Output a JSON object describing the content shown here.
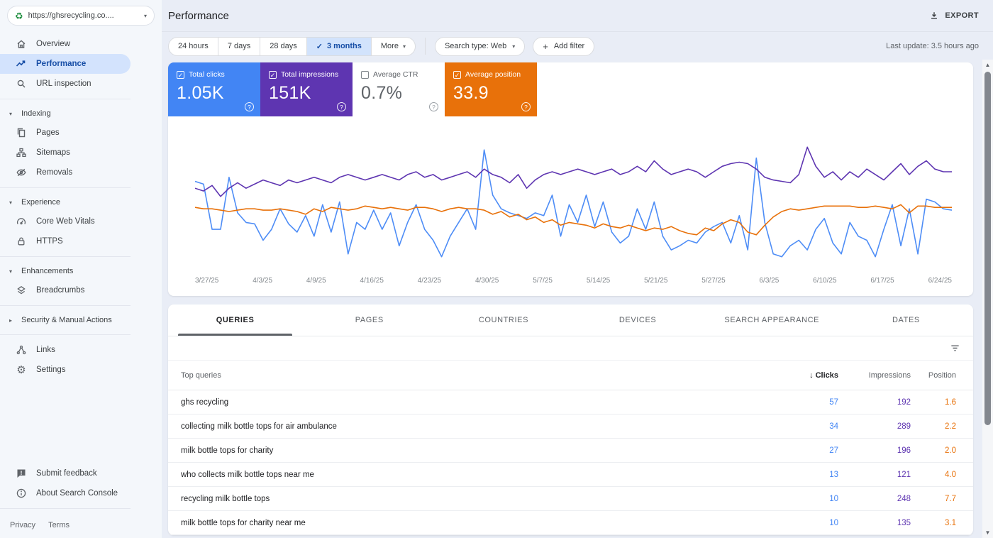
{
  "property_selector": {
    "url": "https://ghsrecycling.co....",
    "icon": "recycle-icon"
  },
  "sidebar": {
    "items": [
      {
        "label": "Overview"
      },
      {
        "label": "Performance",
        "active": true
      },
      {
        "label": "URL inspection"
      },
      {
        "label": "Indexing",
        "type": "section-expanded"
      },
      {
        "label": "Pages"
      },
      {
        "label": "Sitemaps"
      },
      {
        "label": "Removals"
      },
      {
        "label": "Experience",
        "type": "section-expanded"
      },
      {
        "label": "Core Web Vitals"
      },
      {
        "label": "HTTPS"
      },
      {
        "label": "Enhancements",
        "type": "section-expanded"
      },
      {
        "label": "Breadcrumbs"
      },
      {
        "label": "Security & Manual Actions",
        "type": "section-collapsed"
      },
      {
        "label": "Links"
      },
      {
        "label": "Settings"
      }
    ],
    "footer_items": [
      {
        "label": "Submit feedback"
      },
      {
        "label": "About Search Console"
      }
    ],
    "legal": {
      "privacy": "Privacy",
      "terms": "Terms"
    }
  },
  "header": {
    "title": "Performance",
    "export_label": "EXPORT"
  },
  "toolbar": {
    "date_ranges": [
      "24 hours",
      "7 days",
      "28 days",
      "3 months"
    ],
    "selected_range": "3 months",
    "more_label": "More",
    "search_type": "Search type: Web",
    "add_filter": "Add filter",
    "last_update": "Last update: 3.5 hours ago"
  },
  "cards": [
    {
      "label": "Total clicks",
      "value": "1.05K",
      "checked": true,
      "color": "#4285f4"
    },
    {
      "label": "Total impressions",
      "value": "151K",
      "checked": true,
      "color": "#5e35b1"
    },
    {
      "label": "Average CTR",
      "value": "0.7%",
      "checked": false,
      "color": "#ffffff"
    },
    {
      "label": "Average position",
      "value": "33.9",
      "checked": true,
      "color": "#e8710a"
    }
  ],
  "chart_data": {
    "type": "line",
    "title": "Search performance over time",
    "x_ticks": [
      "3/27/25",
      "4/3/25",
      "4/9/25",
      "4/16/25",
      "4/23/25",
      "4/30/25",
      "5/7/25",
      "5/14/25",
      "5/21/25",
      "5/27/25",
      "6/3/25",
      "6/10/25",
      "6/17/25",
      "6/24/25"
    ],
    "x_range": [
      "3/27/25",
      "6/24/25"
    ],
    "ylim": [
      0,
      100
    ],
    "units": "relative height 0-100 (y-axis labels not shown in chart)",
    "grid": false,
    "legend_position": "none (series toggled via metric cards above)",
    "hidden_series": [
      "Average CTR"
    ],
    "series": [
      {
        "name": "Total clicks",
        "total": "1.05K",
        "color": "#4e8df6",
        "values": [
          65,
          63,
          30,
          30,
          68,
          42,
          35,
          34,
          22,
          30,
          45,
          34,
          28,
          40,
          25,
          48,
          28,
          50,
          12,
          35,
          30,
          44,
          30,
          42,
          18,
          35,
          48,
          30,
          22,
          10,
          25,
          35,
          45,
          30,
          88,
          55,
          45,
          42,
          40,
          38,
          42,
          40,
          55,
          25,
          48,
          35,
          55,
          32,
          50,
          28,
          20,
          25,
          45,
          30,
          50,
          25,
          15,
          18,
          22,
          20,
          28,
          32,
          35,
          20,
          40,
          15,
          82,
          35,
          12,
          10,
          18,
          22,
          15,
          30,
          38,
          20,
          12,
          35,
          25,
          22,
          10,
          30,
          48,
          18,
          45,
          12,
          52,
          50,
          45,
          44
        ]
      },
      {
        "name": "Total impressions",
        "total": "151K",
        "color": "#5e35b1",
        "values": [
          60,
          58,
          62,
          54,
          60,
          64,
          60,
          63,
          66,
          64,
          62,
          66,
          64,
          66,
          68,
          66,
          64,
          68,
          70,
          68,
          66,
          68,
          70,
          68,
          66,
          70,
          72,
          68,
          70,
          66,
          68,
          70,
          72,
          68,
          74,
          70,
          68,
          64,
          70,
          60,
          66,
          70,
          72,
          70,
          72,
          74,
          72,
          70,
          72,
          74,
          70,
          72,
          76,
          72,
          80,
          74,
          70,
          72,
          74,
          72,
          68,
          72,
          76,
          78,
          79,
          78,
          74,
          68,
          66,
          65,
          64,
          70,
          90,
          76,
          68,
          72,
          66,
          72,
          68,
          74,
          70,
          66,
          72,
          78,
          70,
          76,
          80,
          74,
          72,
          72
        ]
      },
      {
        "name": "Average position",
        "average": "33.9",
        "color": "#e8710a",
        "values": [
          46,
          45,
          45,
          44,
          43,
          44,
          45,
          45,
          44,
          44,
          45,
          44,
          43,
          41,
          45,
          43,
          46,
          45,
          44,
          45,
          47,
          46,
          45,
          46,
          45,
          44,
          46,
          46,
          45,
          43,
          45,
          46,
          45,
          45,
          44,
          41,
          43,
          39,
          41,
          37,
          39,
          35,
          37,
          33,
          35,
          34,
          33,
          31,
          34,
          32,
          31,
          33,
          31,
          29,
          31,
          30,
          32,
          29,
          27,
          26,
          31,
          29,
          34,
          37,
          35,
          28,
          26,
          33,
          39,
          43,
          45,
          44,
          45,
          46,
          47,
          47,
          47,
          47,
          46,
          46,
          47,
          46,
          45,
          48,
          42,
          47,
          47,
          46,
          46,
          46
        ]
      }
    ]
  },
  "tabs": {
    "items": [
      "QUERIES",
      "PAGES",
      "COUNTRIES",
      "DEVICES",
      "SEARCH APPEARANCE",
      "DATES"
    ],
    "active": "QUERIES"
  },
  "table": {
    "first_column_header": "Top queries",
    "sort_indicator": "↓",
    "sorted_by": "Clicks",
    "columns": [
      "Clicks",
      "Impressions",
      "Position"
    ],
    "rows": [
      {
        "query": "ghs recycling",
        "clicks": "57",
        "impressions": "192",
        "position": "1.6"
      },
      {
        "query": "collecting milk bottle tops for air ambulance",
        "clicks": "34",
        "impressions": "289",
        "position": "2.2"
      },
      {
        "query": "milk bottle tops for charity",
        "clicks": "27",
        "impressions": "196",
        "position": "2.0"
      },
      {
        "query": "who collects milk bottle tops near me",
        "clicks": "13",
        "impressions": "121",
        "position": "4.0"
      },
      {
        "query": "recycling milk bottle tops",
        "clicks": "10",
        "impressions": "248",
        "position": "7.7"
      },
      {
        "query": "milk bottle tops for charity near me",
        "clicks": "10",
        "impressions": "135",
        "position": "3.1"
      }
    ]
  },
  "colors": {
    "clicks": "#4285f4",
    "impressions": "#5e35b1",
    "position": "#e8710a",
    "selected_chip_bg": "#d2e3fc",
    "active_nav_bg": "#d3e3fd",
    "active_nav_text": "#174ea6"
  }
}
